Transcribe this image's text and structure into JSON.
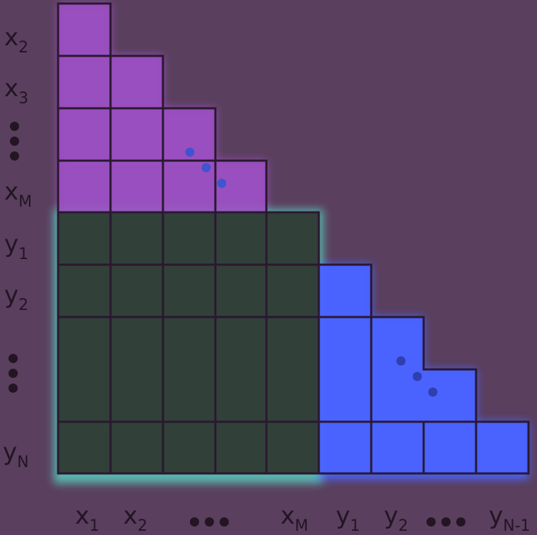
{
  "row_labels": [
    {
      "base": "x",
      "sub": "2"
    },
    {
      "base": "x",
      "sub": "3"
    },
    {
      "base": "x",
      "sub": "M"
    },
    {
      "base": "y",
      "sub": "1"
    },
    {
      "base": "y",
      "sub": "2"
    },
    {
      "base": "y",
      "sub": "N"
    }
  ],
  "col_labels": [
    {
      "base": "x",
      "sub": "1"
    },
    {
      "base": "x",
      "sub": "2"
    },
    {
      "base": "x",
      "sub": "M"
    },
    {
      "base": "y",
      "sub": "1"
    },
    {
      "base": "y",
      "sub": "2"
    },
    {
      "base": "y",
      "sub": "N-1"
    }
  ],
  "colors": {
    "background": "#5a3f5e",
    "grid_line": "#2a1830",
    "xx_block": "#9a4fbf",
    "xy_block": "#2f3a33",
    "xy_glow": "#58b7b0",
    "yy_block": "#4a63ff",
    "label": "#231523"
  }
}
